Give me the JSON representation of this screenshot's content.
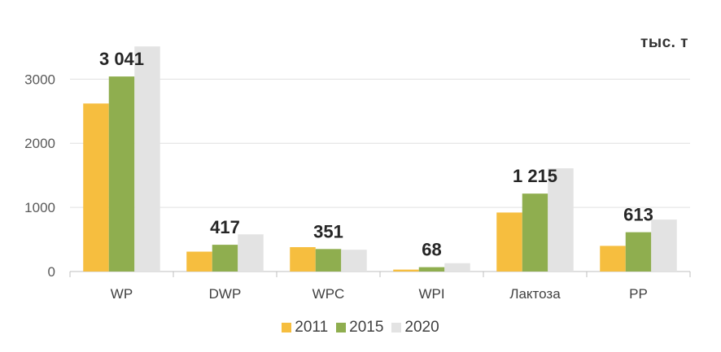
{
  "chart_data": {
    "type": "bar",
    "unit_label": "тыс. т",
    "categories": [
      "WP",
      "DWP",
      "WPC",
      "WPI",
      "Лактоза",
      "PP"
    ],
    "series": [
      {
        "name": "2011",
        "color": "#F6BE3F",
        "values": [
          2620,
          310,
          380,
          30,
          920,
          400
        ]
      },
      {
        "name": "2015",
        "color": "#8FAE4F",
        "values": [
          3041,
          417,
          351,
          68,
          1215,
          613
        ]
      },
      {
        "name": "2020",
        "color": "#E3E3E3",
        "values": [
          3510,
          580,
          340,
          130,
          1610,
          810
        ]
      }
    ],
    "data_labels": [
      "3 041",
      "417",
      "351",
      "68",
      "1 215",
      "613"
    ],
    "y_ticks": [
      0,
      1000,
      2000,
      3000
    ],
    "ylim": [
      0,
      3600
    ],
    "grid": true,
    "legend_position": "bottom",
    "title": "",
    "xlabel": "",
    "ylabel": ""
  }
}
